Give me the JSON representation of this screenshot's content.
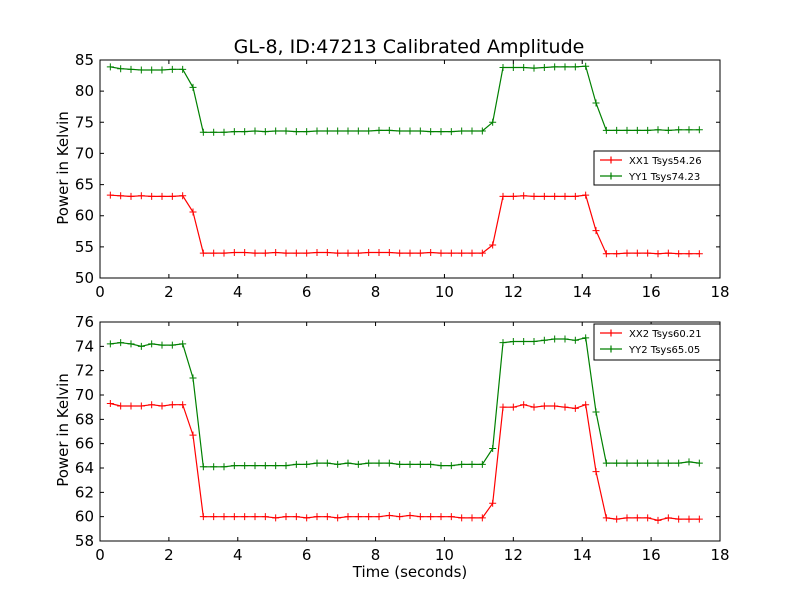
{
  "chart_data": [
    {
      "type": "line",
      "title": "GL-8, ID:47213 Calibrated Amplitude",
      "xlabel": "",
      "ylabel": "Power in Kelvin",
      "xlim": [
        0,
        18
      ],
      "ylim": [
        50,
        85
      ],
      "xticks": [
        0,
        2,
        4,
        6,
        8,
        10,
        12,
        14,
        16,
        18
      ],
      "yticks": [
        50,
        55,
        60,
        65,
        70,
        75,
        80,
        85
      ],
      "legend_position": "center-right",
      "x": [
        0.3,
        0.6,
        0.9,
        1.2,
        1.5,
        1.8,
        2.1,
        2.4,
        2.7,
        3.0,
        3.3,
        3.6,
        3.9,
        4.2,
        4.5,
        4.8,
        5.1,
        5.4,
        5.7,
        6.0,
        6.3,
        6.6,
        6.9,
        7.2,
        7.5,
        7.8,
        8.1,
        8.4,
        8.7,
        9.0,
        9.3,
        9.6,
        9.9,
        10.2,
        10.5,
        10.8,
        11.1,
        11.4,
        11.7,
        12.0,
        12.3,
        12.6,
        12.9,
        13.2,
        13.5,
        13.8,
        14.1,
        14.4,
        14.7,
        15.0,
        15.3,
        15.6,
        15.9,
        16.2,
        16.5,
        16.8,
        17.1,
        17.4
      ],
      "series": [
        {
          "name": "XX1 Tsys54.26",
          "color": "#ff0000",
          "values": [
            63.3,
            63.2,
            63.1,
            63.2,
            63.1,
            63.1,
            63.1,
            63.2,
            60.6,
            54.0,
            54.0,
            54.0,
            54.1,
            54.1,
            54.0,
            54.0,
            54.1,
            54.0,
            54.0,
            54.0,
            54.1,
            54.1,
            54.0,
            54.0,
            54.0,
            54.1,
            54.1,
            54.1,
            54.0,
            54.0,
            54.0,
            54.1,
            54.0,
            54.0,
            54.0,
            54.0,
            54.0,
            55.3,
            63.1,
            63.1,
            63.2,
            63.1,
            63.1,
            63.1,
            63.1,
            63.1,
            63.3,
            57.6,
            53.9,
            53.9,
            54.0,
            54.0,
            54.0,
            53.9,
            54.0,
            53.9,
            53.9,
            53.9
          ]
        },
        {
          "name": "YY1 Tsys74.23",
          "color": "#008000",
          "values": [
            83.9,
            83.6,
            83.5,
            83.4,
            83.4,
            83.4,
            83.5,
            83.5,
            80.6,
            73.4,
            73.4,
            73.4,
            73.5,
            73.5,
            73.6,
            73.5,
            73.6,
            73.6,
            73.5,
            73.5,
            73.6,
            73.6,
            73.6,
            73.6,
            73.6,
            73.6,
            73.7,
            73.7,
            73.6,
            73.6,
            73.6,
            73.5,
            73.5,
            73.5,
            73.6,
            73.6,
            73.6,
            75.0,
            83.8,
            83.8,
            83.8,
            83.7,
            83.8,
            83.9,
            83.9,
            83.9,
            84.0,
            78.1,
            73.7,
            73.7,
            73.7,
            73.7,
            73.7,
            73.8,
            73.7,
            73.8,
            73.8,
            73.8
          ]
        }
      ]
    },
    {
      "type": "line",
      "title": "",
      "xlabel": "Time (seconds)",
      "ylabel": "Power in Kelvin",
      "xlim": [
        0,
        18
      ],
      "ylim": [
        58,
        76
      ],
      "xticks": [
        0,
        2,
        4,
        6,
        8,
        10,
        12,
        14,
        16,
        18
      ],
      "yticks": [
        58,
        60,
        62,
        64,
        66,
        68,
        70,
        72,
        74,
        76
      ],
      "legend_position": "top-right",
      "x": [
        0.3,
        0.6,
        0.9,
        1.2,
        1.5,
        1.8,
        2.1,
        2.4,
        2.7,
        3.0,
        3.3,
        3.6,
        3.9,
        4.2,
        4.5,
        4.8,
        5.1,
        5.4,
        5.7,
        6.0,
        6.3,
        6.6,
        6.9,
        7.2,
        7.5,
        7.8,
        8.1,
        8.4,
        8.7,
        9.0,
        9.3,
        9.6,
        9.9,
        10.2,
        10.5,
        10.8,
        11.1,
        11.4,
        11.7,
        12.0,
        12.3,
        12.6,
        12.9,
        13.2,
        13.5,
        13.8,
        14.1,
        14.4,
        14.7,
        15.0,
        15.3,
        15.6,
        15.9,
        16.2,
        16.5,
        16.8,
        17.1,
        17.4
      ],
      "series": [
        {
          "name": "XX2 Tsys60.21",
          "color": "#ff0000",
          "values": [
            69.3,
            69.1,
            69.1,
            69.1,
            69.2,
            69.1,
            69.2,
            69.2,
            66.7,
            60.0,
            60.0,
            60.0,
            60.0,
            60.0,
            60.0,
            60.0,
            59.9,
            60.0,
            60.0,
            59.9,
            60.0,
            60.0,
            59.9,
            60.0,
            60.0,
            60.0,
            60.0,
            60.1,
            60.0,
            60.1,
            60.0,
            60.0,
            60.0,
            60.0,
            59.9,
            59.9,
            59.9,
            61.1,
            69.0,
            69.0,
            69.2,
            69.0,
            69.1,
            69.1,
            69.0,
            68.9,
            69.2,
            63.7,
            59.9,
            59.8,
            59.9,
            59.9,
            59.9,
            59.7,
            59.9,
            59.8,
            59.8,
            59.8
          ]
        },
        {
          "name": "YY2 Tsys65.05",
          "color": "#008000",
          "values": [
            74.2,
            74.3,
            74.2,
            74.0,
            74.2,
            74.1,
            74.1,
            74.2,
            71.4,
            64.1,
            64.1,
            64.1,
            64.2,
            64.2,
            64.2,
            64.2,
            64.2,
            64.2,
            64.3,
            64.3,
            64.4,
            64.4,
            64.3,
            64.4,
            64.3,
            64.4,
            64.4,
            64.4,
            64.3,
            64.3,
            64.3,
            64.3,
            64.2,
            64.2,
            64.3,
            64.3,
            64.3,
            65.6,
            74.3,
            74.4,
            74.4,
            74.4,
            74.5,
            74.6,
            74.6,
            74.5,
            74.7,
            68.6,
            64.4,
            64.4,
            64.4,
            64.4,
            64.4,
            64.4,
            64.4,
            64.4,
            64.5,
            64.4
          ]
        }
      ]
    }
  ]
}
